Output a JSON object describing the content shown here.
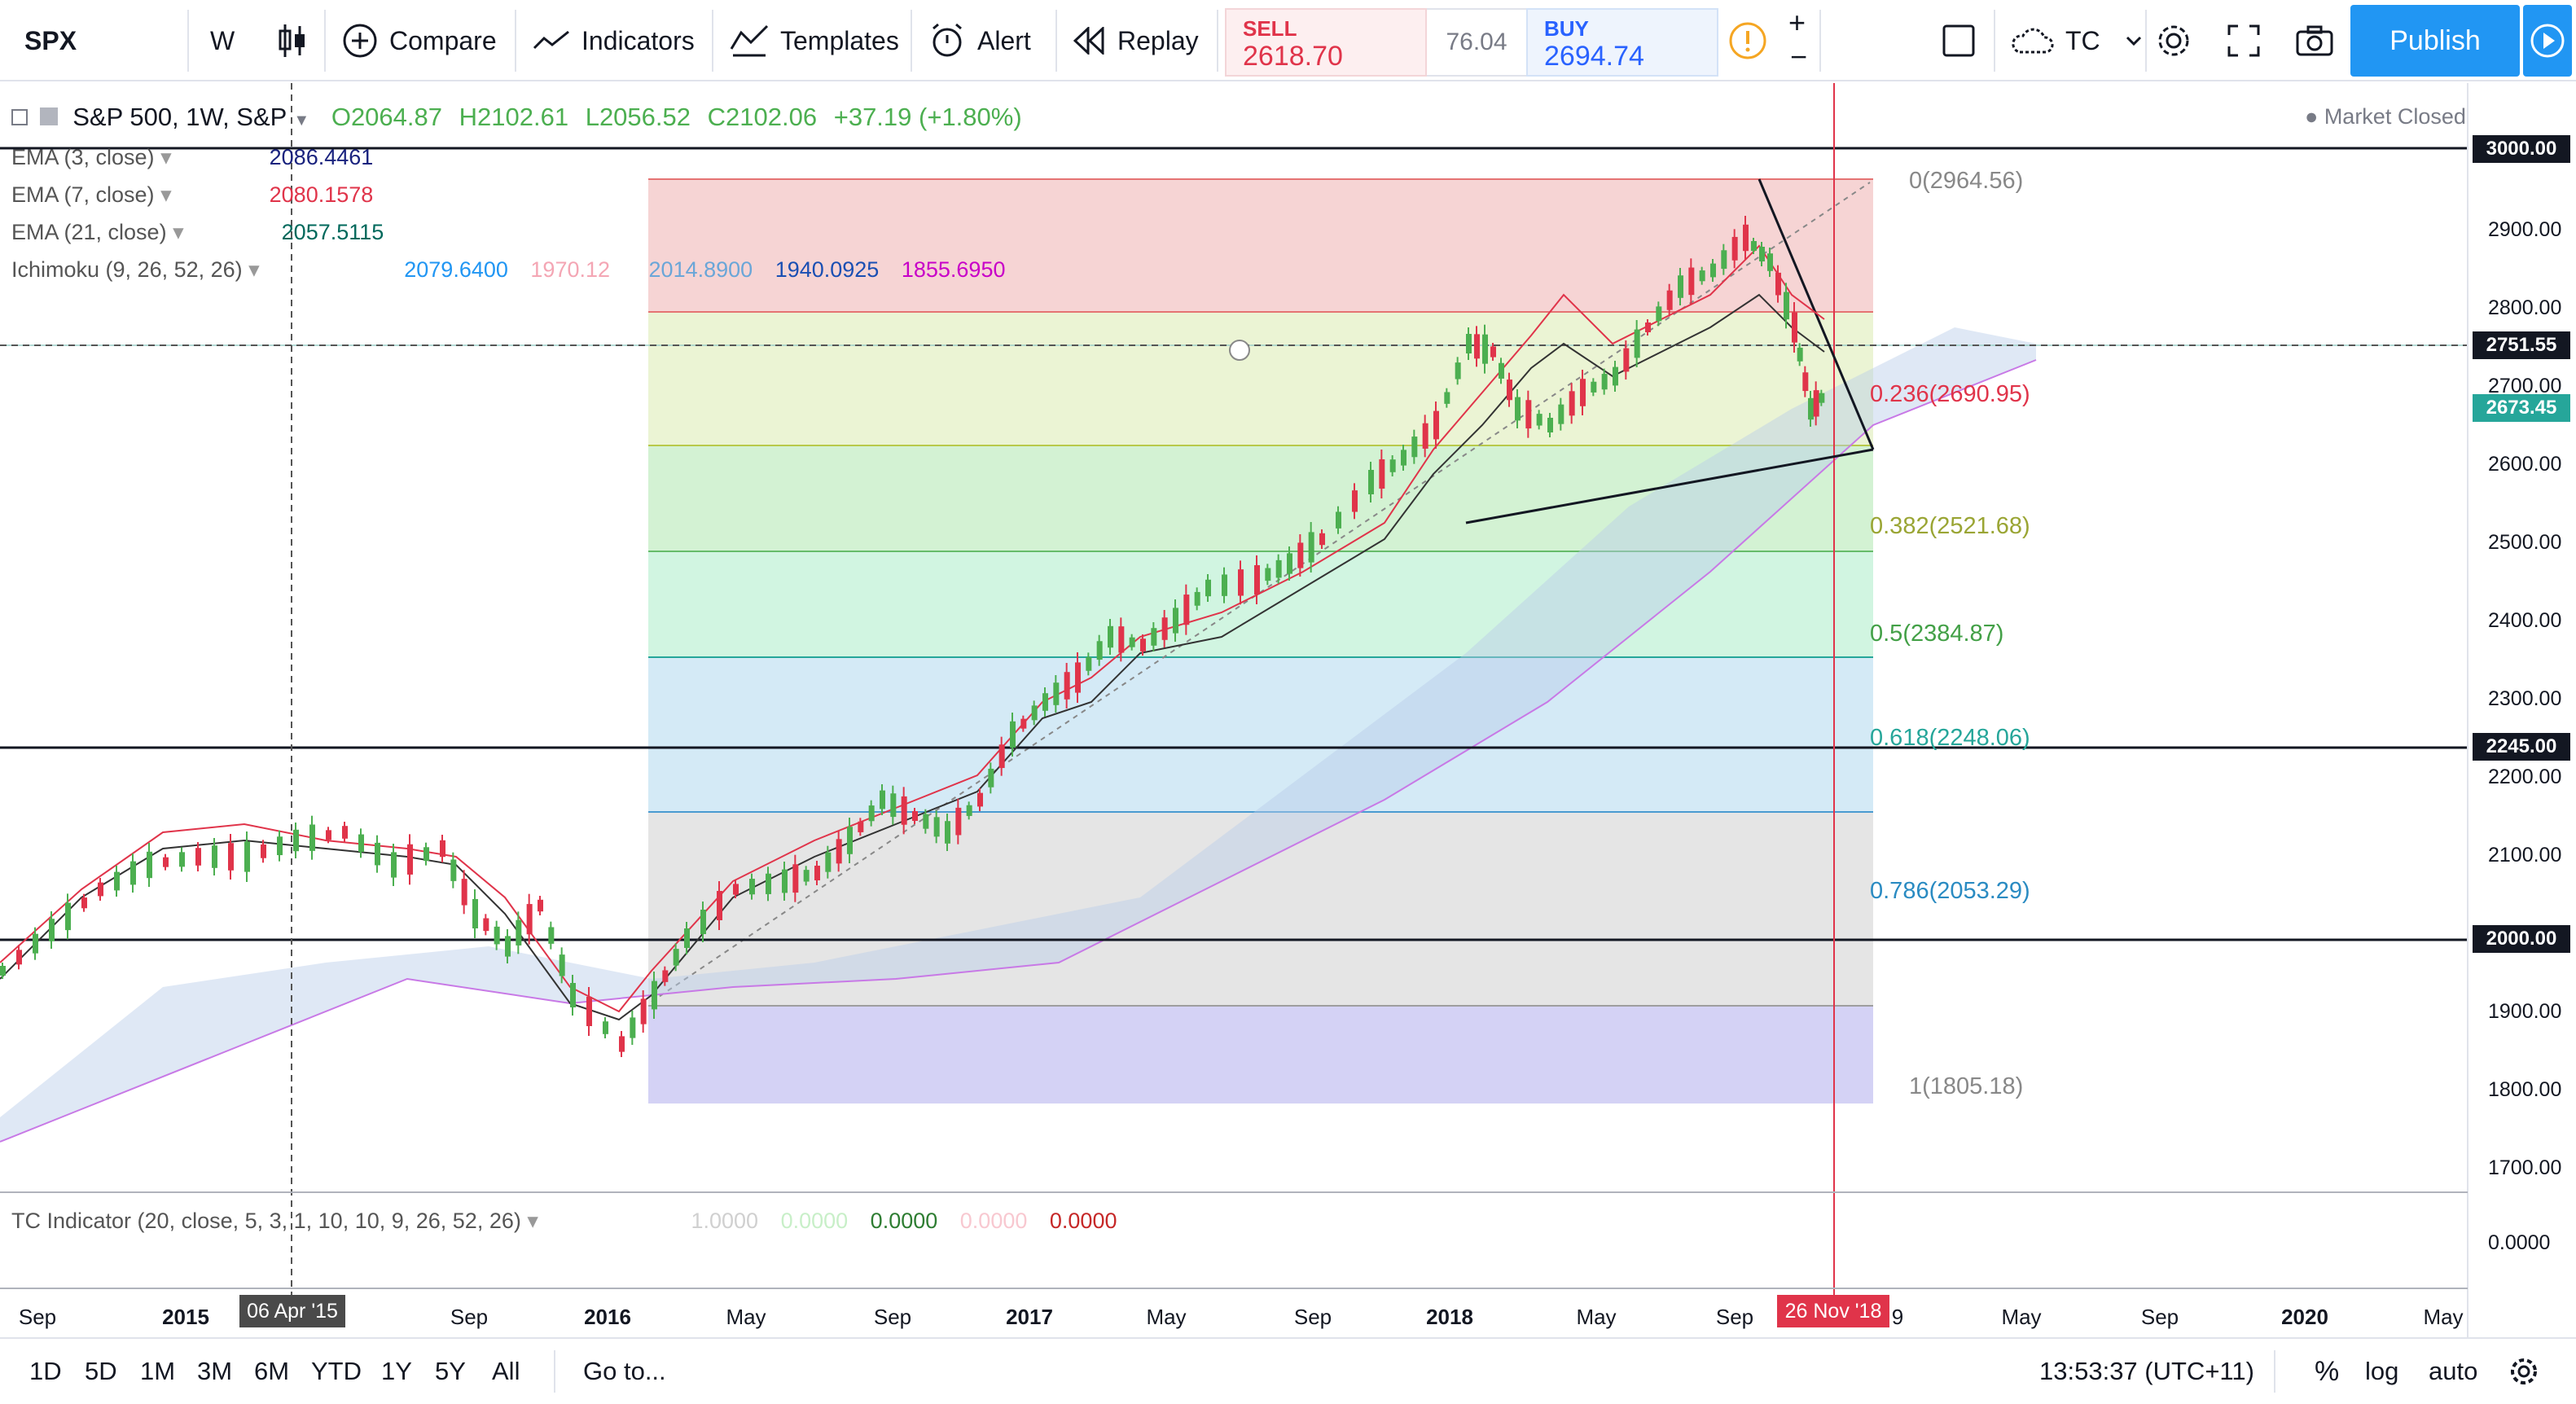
{
  "toolbar": {
    "symbol": "SPX",
    "interval": "W",
    "compare": "Compare",
    "indicators": "Indicators",
    "templates": "Templates",
    "alert": "Alert",
    "replay": "Replay",
    "sell_label": "SELL",
    "sell_price": "2618.70",
    "spread": "76.04",
    "buy_label": "BUY",
    "buy_price": "2694.74",
    "drawing_tool": "TC",
    "publish": "Publish"
  },
  "legend": {
    "title": "S&P 500, 1W, S&P",
    "open": "O2064.87",
    "high": "H2102.61",
    "low": "L2056.52",
    "close": "C2102.06",
    "change": "+37.19 (+1.80%)",
    "market_status": "Market Closed",
    "ema3_label": "EMA (3, close)",
    "ema3_value": "2086.4461",
    "ema7_label": "EMA (7, close)",
    "ema7_value": "2080.1578",
    "ema21_label": "EMA (21, close)",
    "ema21_value": "2057.5115",
    "ichimoku_label": "Ichimoku (9, 26, 52, 26)",
    "ichimoku_v1": "2079.6400",
    "ichimoku_v2": "1970.12",
    "ichimoku_v3": "2014.8900",
    "ichimoku_v4": "1940.0925",
    "ichimoku_v5": "1855.6950",
    "tc_label": "TC Indicator (20, close, 5, 3, 1, 10, 10, 9, 26, 52, 26)",
    "tc_v1": "1.0000",
    "tc_v2": "0.0000",
    "tc_v3": "0.0000",
    "tc_v4": "0.0000",
    "tc_v5": "0.0000"
  },
  "fib_labels": [
    "0(2964.56)",
    "0.236(2690.95)",
    "0.382(2521.68)",
    "0.5(2384.87)",
    "0.618(2248.06)",
    "0.786(2053.29)",
    "1(1805.18)"
  ],
  "price_axis": {
    "ticks": [
      "2900.00",
      "2800.00",
      "2700.00",
      "2600.00",
      "2500.00",
      "2400.00",
      "2300.00",
      "2200.00",
      "2100.00",
      "1900.00",
      "1800.00",
      "1700.00"
    ],
    "tag_3000": "3000.00",
    "tag_2751": "2751.55",
    "tag_2673": "2673.45",
    "tag_2245": "2245.00",
    "tag_2000": "2000.00",
    "osc_zero": "0.0000"
  },
  "time_axis": {
    "labels": [
      "Sep",
      "2015",
      "Sep",
      "2016",
      "May",
      "Sep",
      "2017",
      "May",
      "Sep",
      "2018",
      "May",
      "Sep",
      "9",
      "May",
      "Sep",
      "2020",
      "May"
    ],
    "crosshair_date": "06 Apr '15",
    "cursor_date": "26 Nov '18"
  },
  "bottom": {
    "ranges": [
      "1D",
      "5D",
      "1M",
      "3M",
      "6M",
      "YTD",
      "1Y",
      "5Y",
      "All"
    ],
    "goto": "Go to...",
    "clock": "13:53:37 (UTC+11)",
    "percent": "%",
    "log": "log",
    "auto": "auto"
  },
  "colors": {
    "up": "#4caf50",
    "down": "#e0344a",
    "accent": "#2196f3"
  }
}
